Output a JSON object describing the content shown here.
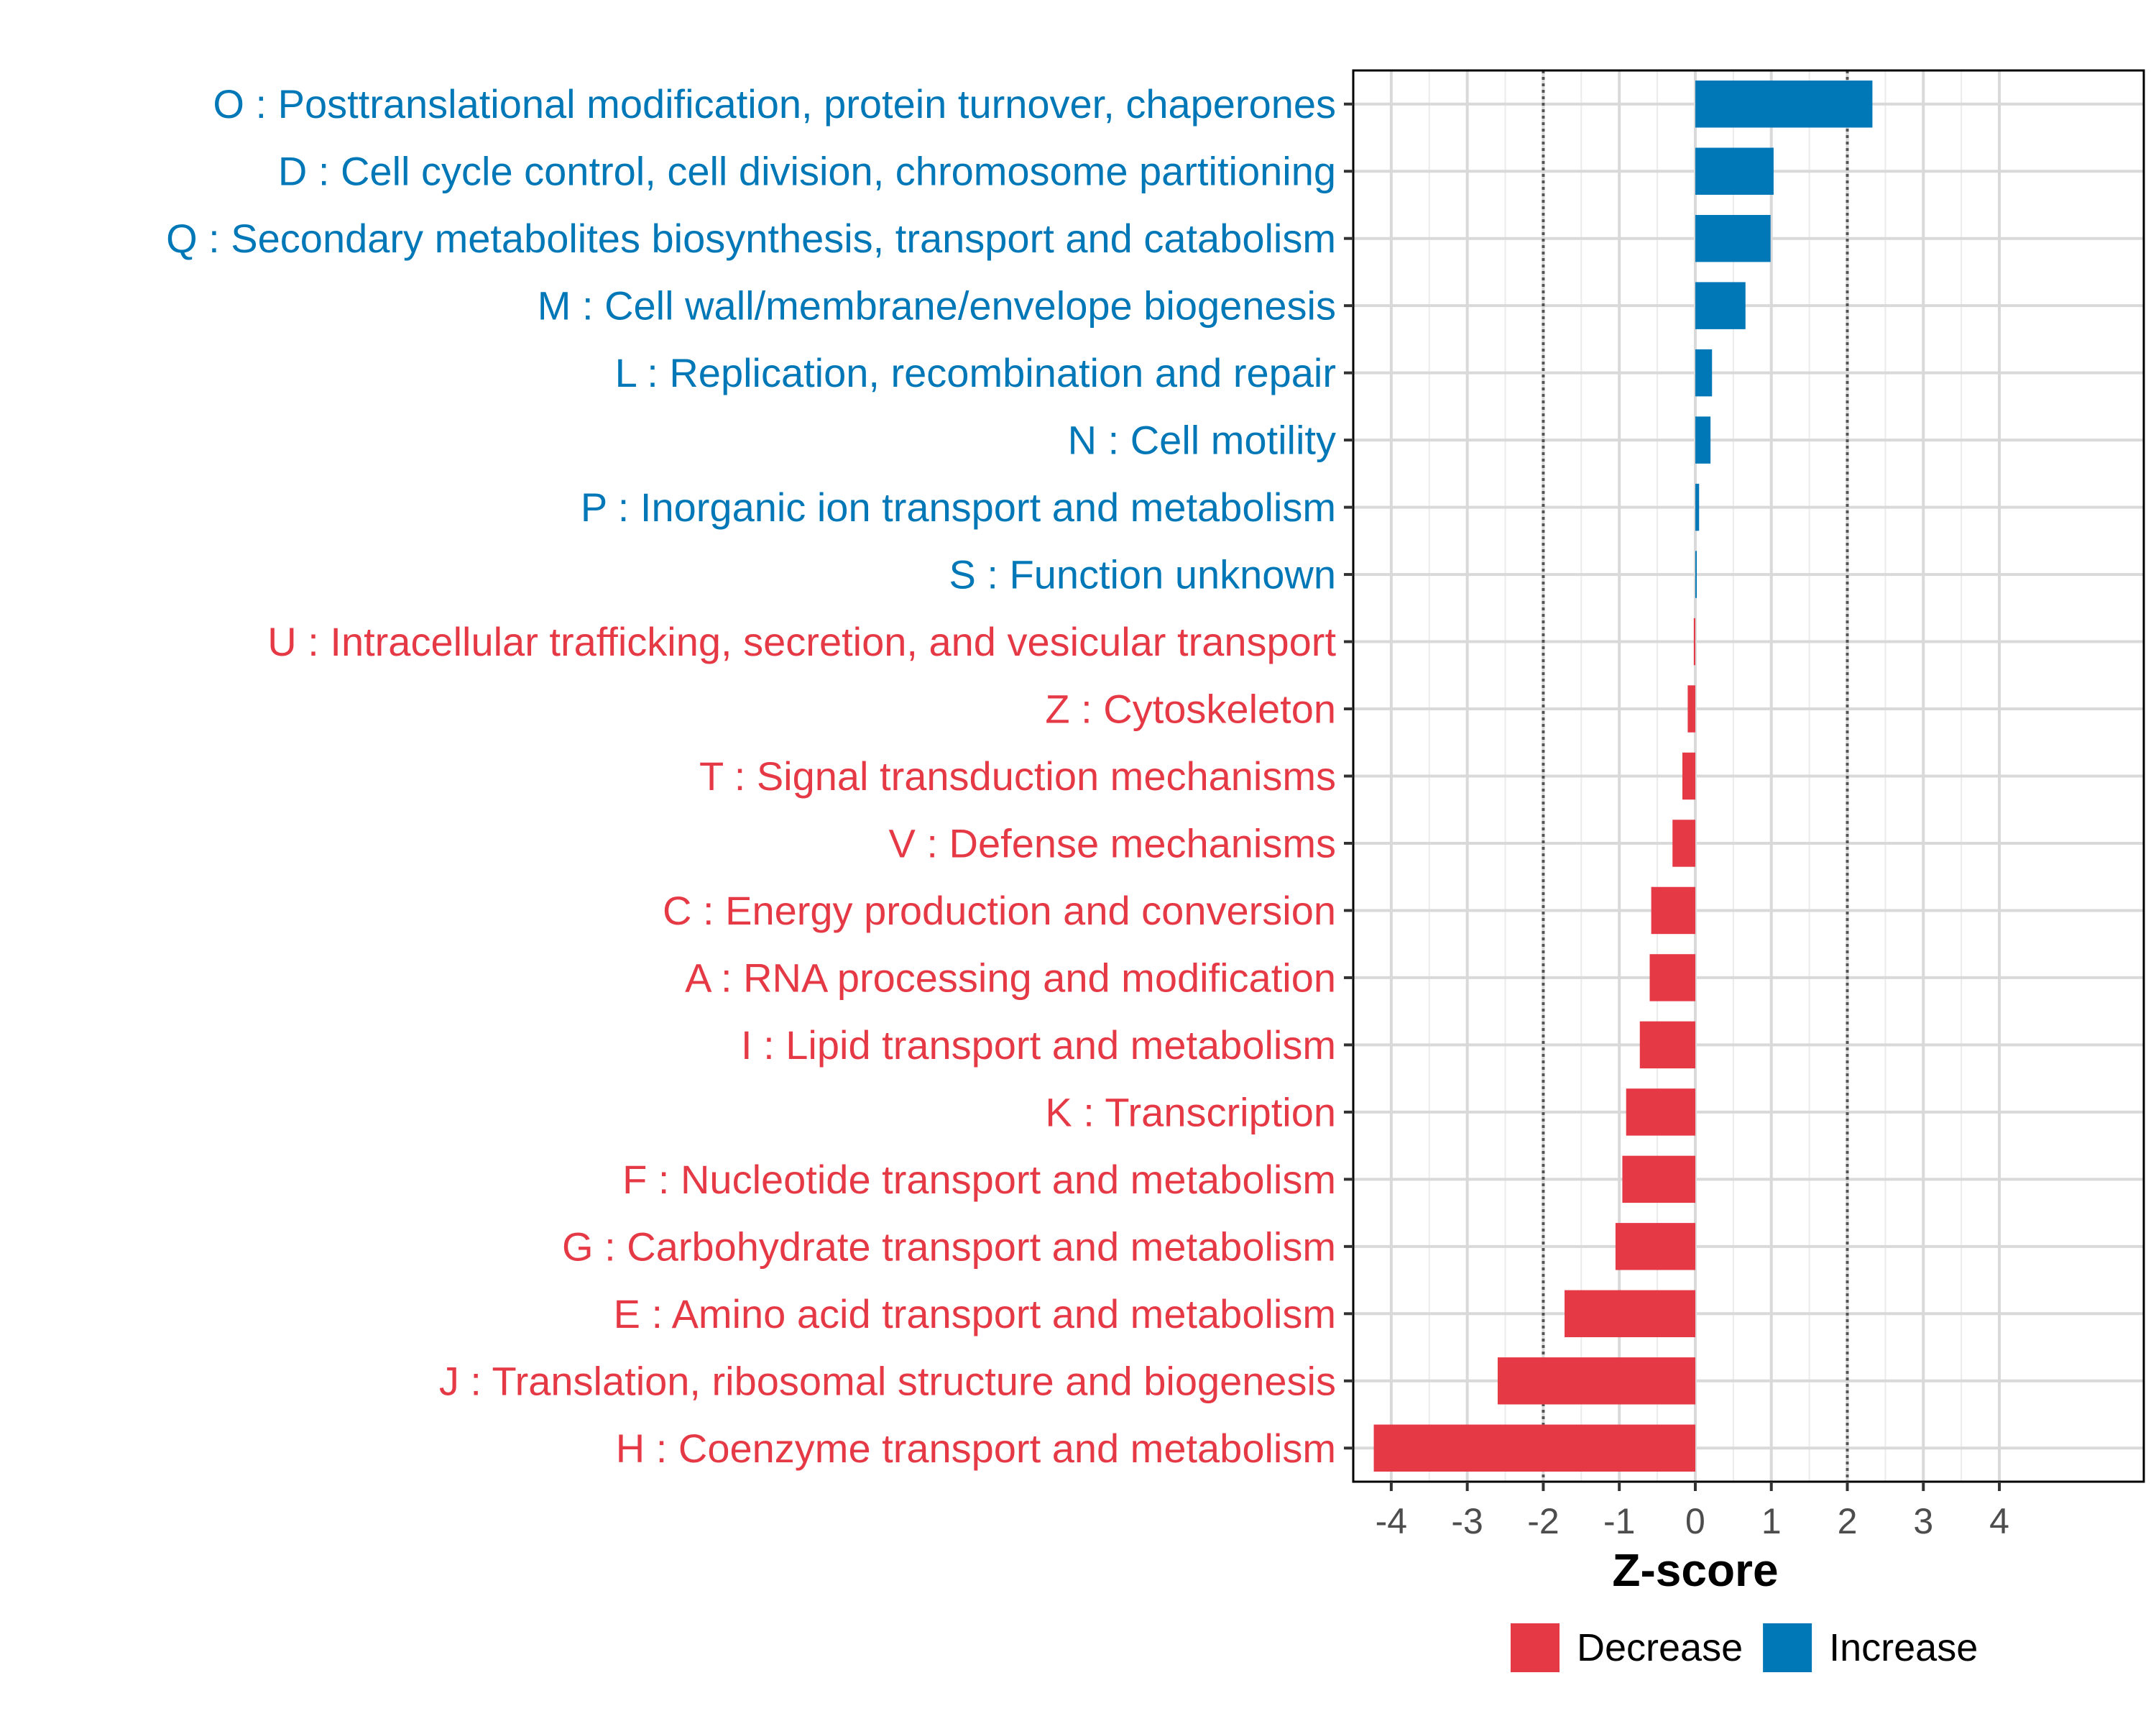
{
  "chart_data": {
    "type": "bar",
    "orientation": "horizontal",
    "title": "",
    "xlabel": "Z-score",
    "ylabel": "",
    "xlim": [
      -4.5,
      5.9
    ],
    "xticks": [
      -4,
      -3,
      -2,
      -1,
      0,
      1,
      2,
      3,
      4
    ],
    "xtick_labels": [
      "-4",
      "-3",
      "-2",
      "-1",
      "0",
      "1",
      "2",
      "3",
      "4"
    ],
    "reference_lines": [
      -2,
      2
    ],
    "grid": true,
    "legend_position": "bottom",
    "colors": {
      "Decrease": "#e63946",
      "Increase": "#0077b6"
    },
    "legend": [
      {
        "label": "Decrease",
        "color": "#e63946"
      },
      {
        "label": "Increase",
        "color": "#0077b6"
      }
    ],
    "categories": [
      "O : Posttranslational modification, protein turnover, chaperones",
      "D : Cell cycle control, cell division, chromosome partitioning",
      "Q : Secondary metabolites biosynthesis, transport and catabolism",
      "M : Cell wall/membrane/envelope biogenesis",
      "L : Replication, recombination and repair",
      "N : Cell motility",
      "P : Inorganic ion transport and metabolism",
      "S : Function unknown",
      "U : Intracellular trafficking, secretion, and vesicular transport",
      "Z : Cytoskeleton",
      "T : Signal transduction mechanisms",
      "V : Defense mechanisms",
      "C : Energy production and conversion",
      "A : RNA processing and modification",
      "I : Lipid transport and metabolism",
      "K : Transcription",
      "F : Nucleotide transport and metabolism",
      "G : Carbohydrate transport and metabolism",
      "E : Amino acid transport and metabolism",
      "J : Translation, ribosomal structure and biogenesis",
      "H : Coenzyme transport and metabolism"
    ],
    "values": [
      2.33,
      1.03,
      0.99,
      0.66,
      0.22,
      0.2,
      0.05,
      0.01,
      -0.02,
      -0.1,
      -0.17,
      -0.3,
      -0.58,
      -0.6,
      -0.73,
      -0.91,
      -0.96,
      -1.05,
      -1.72,
      -2.6,
      -4.23
    ]
  }
}
